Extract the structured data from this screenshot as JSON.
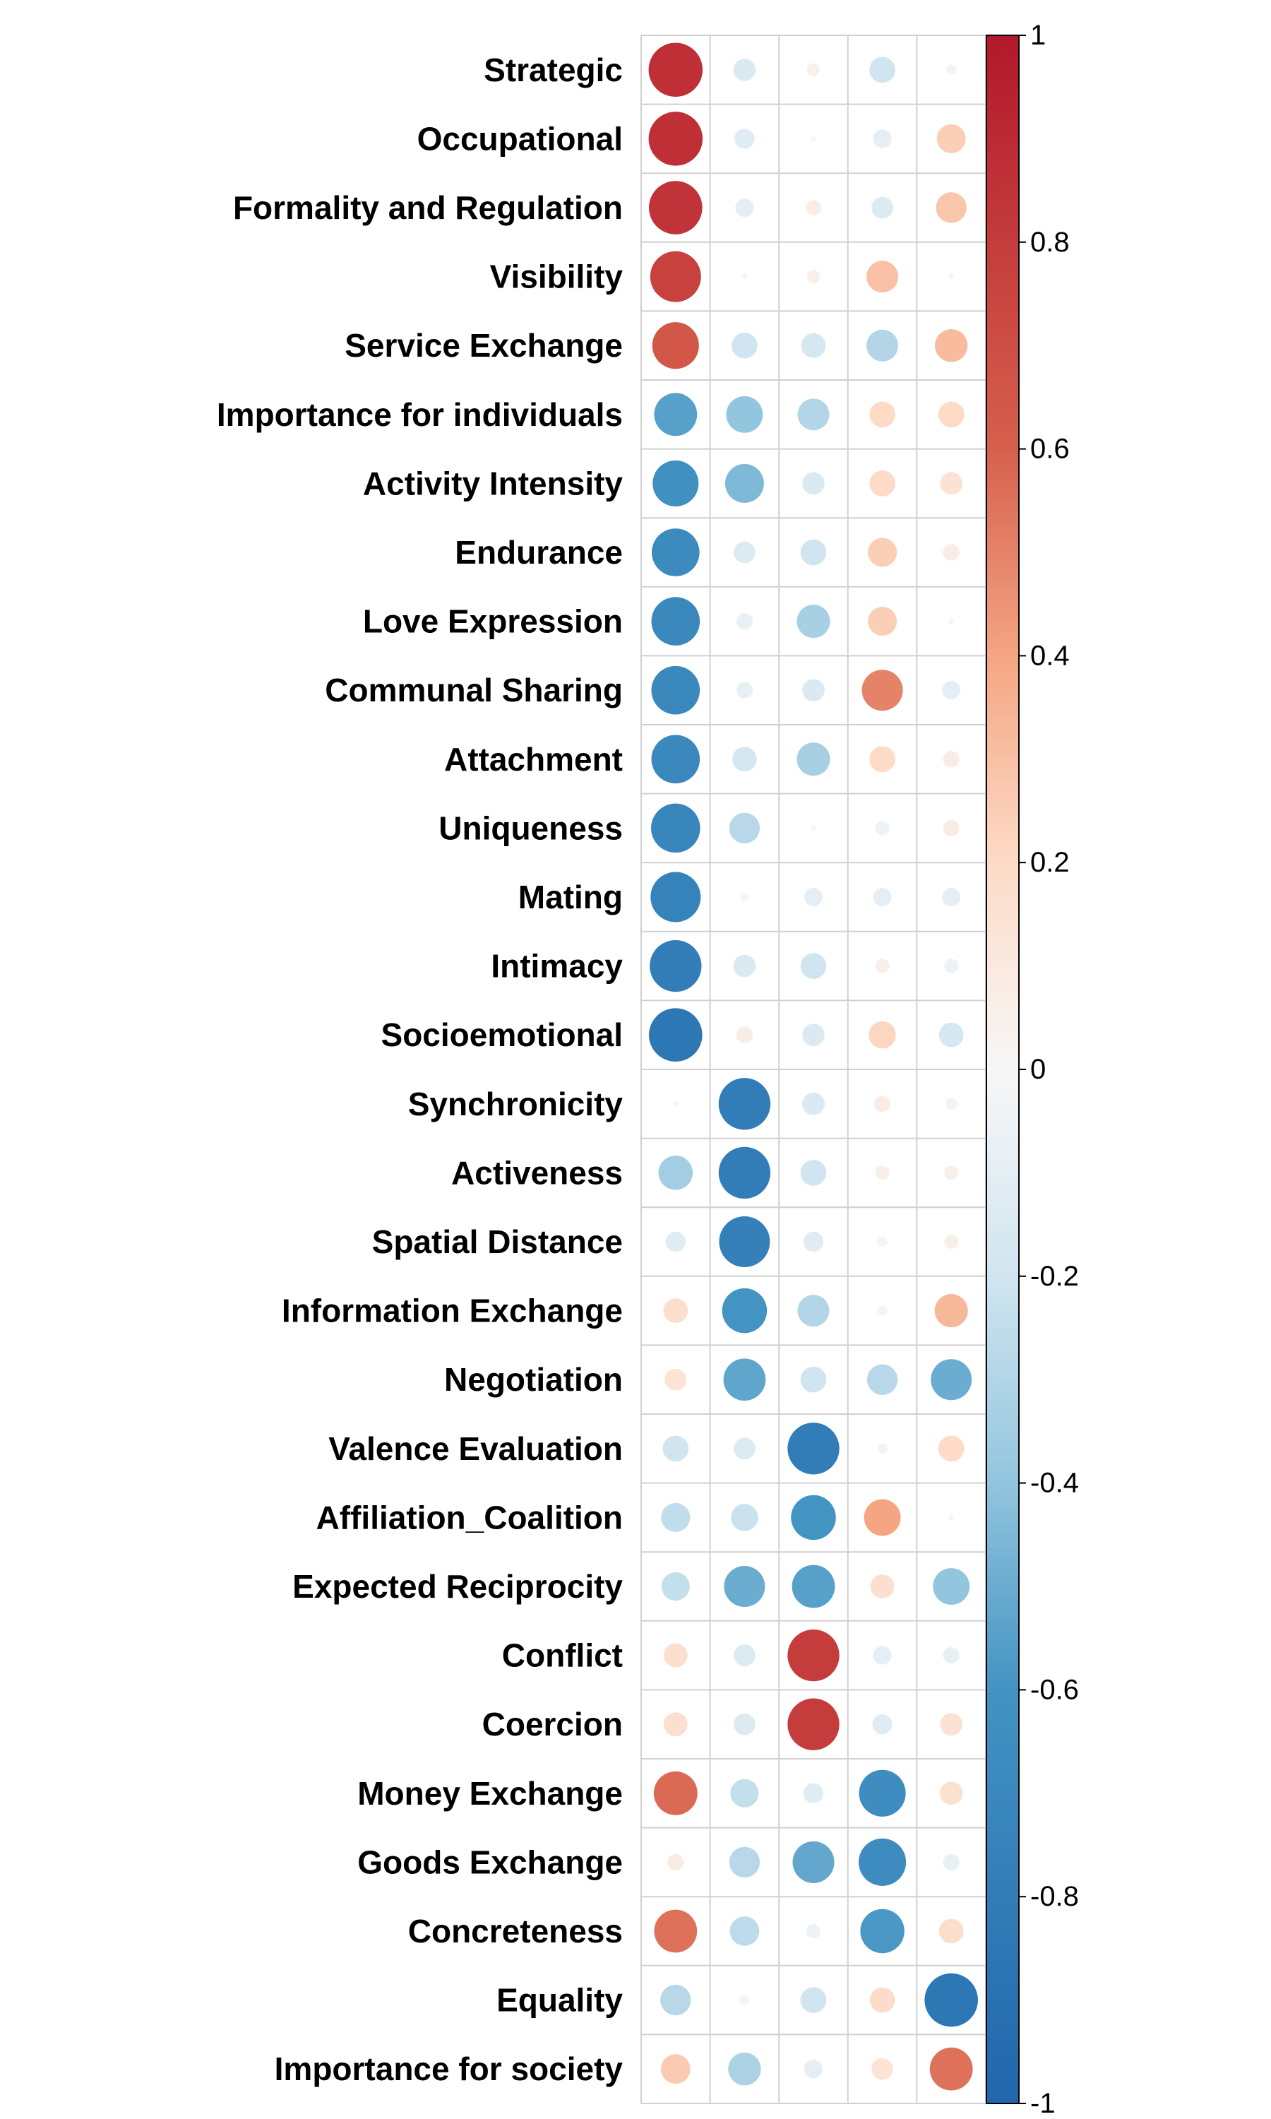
{
  "chart_data": {
    "type": "heatmap",
    "subtype": "correlation-circle-matrix",
    "rows": [
      "Strategic",
      "Occupational",
      "Formality and Regulation",
      "Visibility",
      "Service Exchange",
      "Importance for individuals",
      "Activity Intensity",
      "Endurance",
      "Love Expression",
      "Communal Sharing",
      "Attachment",
      "Uniqueness",
      "Mating",
      "Intimacy",
      "Socioemotional",
      "Synchronicity",
      "Activeness",
      "Spatial Distance",
      "Information Exchange",
      "Negotiation",
      "Valence Evaluation",
      "Affiliation_Coalition",
      "Expected Reciprocity",
      "Conflict",
      "Coercion",
      "Money Exchange",
      "Goods Exchange",
      "Concreteness",
      "Equality",
      "Importance for society"
    ],
    "column_count": 5,
    "values": [
      [
        0.87,
        -0.15,
        0.05,
        -0.2,
        0.03
      ],
      [
        0.87,
        -0.12,
        0.01,
        -0.1,
        0.25
      ],
      [
        0.85,
        -0.1,
        0.07,
        -0.14,
        0.28
      ],
      [
        0.77,
        0.01,
        0.05,
        0.3,
        0.01
      ],
      [
        0.65,
        -0.2,
        -0.18,
        -0.3,
        0.32
      ],
      [
        -0.55,
        -0.4,
        -0.3,
        0.2,
        0.2
      ],
      [
        -0.63,
        -0.45,
        -0.15,
        0.2,
        0.15
      ],
      [
        -0.68,
        -0.14,
        -0.2,
        0.25,
        0.08
      ],
      [
        -0.7,
        -0.08,
        -0.33,
        0.25,
        0.01
      ],
      [
        -0.7,
        -0.08,
        -0.15,
        0.5,
        -0.1
      ],
      [
        -0.7,
        -0.18,
        -0.33,
        0.2,
        0.08
      ],
      [
        -0.72,
        -0.28,
        0.01,
        -0.06,
        0.08
      ],
      [
        -0.75,
        0.02,
        -0.1,
        -0.1,
        -0.1
      ],
      [
        -0.8,
        -0.15,
        -0.2,
        0.06,
        -0.06
      ],
      [
        -0.85,
        0.08,
        -0.15,
        0.22,
        -0.18
      ],
      [
        0.01,
        -0.8,
        -0.15,
        0.08,
        0.04
      ],
      [
        -0.35,
        -0.8,
        -0.2,
        0.06,
        0.06
      ],
      [
        -0.12,
        -0.77,
        -0.12,
        0.03,
        0.06
      ],
      [
        0.18,
        -0.6,
        -0.3,
        0.03,
        0.33
      ],
      [
        0.14,
        -0.53,
        -0.2,
        -0.28,
        -0.5
      ],
      [
        -0.2,
        -0.14,
        -0.8,
        0.03,
        0.2
      ],
      [
        -0.25,
        -0.22,
        -0.6,
        0.4,
        0.01
      ],
      [
        -0.24,
        -0.5,
        -0.55,
        0.17,
        -0.4
      ],
      [
        0.17,
        -0.14,
        0.8,
        -0.1,
        -0.08
      ],
      [
        0.17,
        -0.14,
        0.8,
        -0.12,
        0.15
      ],
      [
        0.57,
        -0.24,
        -0.12,
        -0.65,
        0.16
      ],
      [
        0.08,
        -0.28,
        -0.52,
        -0.67,
        -0.08
      ],
      [
        0.55,
        -0.26,
        -0.06,
        -0.58,
        0.18
      ],
      [
        -0.28,
        0.03,
        -0.2,
        0.19,
        -0.85
      ],
      [
        0.26,
        -0.32,
        -0.1,
        0.14,
        0.55
      ]
    ],
    "colorbar": {
      "min": -1,
      "max": 1,
      "ticks": [
        1,
        0.8,
        0.6,
        0.4,
        0.2,
        0,
        -0.2,
        -0.4,
        -0.6,
        -0.8,
        -1
      ],
      "tick_labels": [
        "1",
        "0.8",
        "0.6",
        "0.4",
        "0.2",
        "0",
        "-0.2",
        "-0.4",
        "-0.6",
        "-0.8",
        "-1"
      ],
      "stops": [
        {
          "value": -1,
          "color": "#2166ac"
        },
        {
          "value": -0.6,
          "color": "#4393c3"
        },
        {
          "value": -0.4,
          "color": "#92c5de"
        },
        {
          "value": -0.2,
          "color": "#d1e5f0"
        },
        {
          "value": 0,
          "color": "#f7f7f7"
        },
        {
          "value": 0.2,
          "color": "#fddbc7"
        },
        {
          "value": 0.4,
          "color": "#f4a582"
        },
        {
          "value": 0.6,
          "color": "#d6604d"
        },
        {
          "value": 1,
          "color": "#b2182b"
        }
      ]
    },
    "grid_color": "#d0d0d0",
    "legend_placement": "right"
  }
}
